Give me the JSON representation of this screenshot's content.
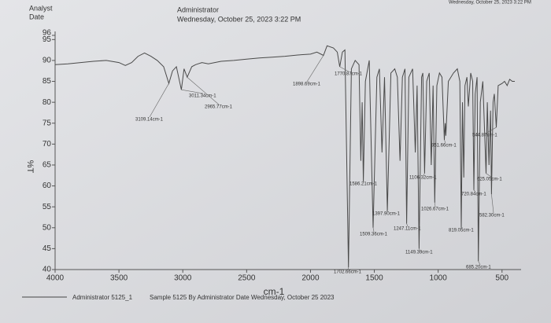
{
  "header": {
    "analyst_label": "Analyst",
    "date_label": "Date",
    "operator": "Administrator",
    "timestamp": "Wednesday, October 25, 2023 3:22 PM",
    "corner_timestamp": "Wednesday, October 25, 2023 3:22 PM"
  },
  "chart_data": {
    "type": "line",
    "x_label": "cm-1",
    "y_label": "%T",
    "xlim": [
      4000,
      400
    ],
    "ylim": [
      40,
      96
    ],
    "xticks": [
      4000,
      3500,
      3000,
      2500,
      2000,
      1500,
      1000,
      500
    ],
    "yticks": [
      40,
      45,
      50,
      55,
      60,
      65,
      70,
      75,
      80,
      85,
      90,
      95,
      96
    ],
    "series": [
      {
        "name": "Administrator 5125_1",
        "color": "#4a4a4a",
        "x": [
          4000,
          3900,
          3800,
          3700,
          3600,
          3500,
          3450,
          3400,
          3350,
          3300,
          3250,
          3200,
          3150,
          3109.14,
          3080,
          3050,
          3011.34,
          2990,
          2965.77,
          2930,
          2900,
          2850,
          2800,
          2700,
          2600,
          2500,
          2400,
          2300,
          2200,
          2100,
          2000,
          1950,
          1898.69,
          1870,
          1820,
          1790,
          1770.87,
          1750,
          1730,
          1702.66,
          1680,
          1650,
          1620,
          1606,
          1595,
          1586.21,
          1570,
          1540,
          1509.36,
          1480,
          1460,
          1440,
          1420,
          1397.9,
          1370,
          1340,
          1320,
          1299,
          1280,
          1260,
          1247.11,
          1230,
          1200,
          1179,
          1165,
          1149.39,
          1130,
          1120,
          1106.32,
          1090,
          1070,
          1054,
          1040,
          1026.67,
          1010,
          990,
          970,
          951.66,
          945,
          940,
          920,
          880,
          850,
          830,
          819.05,
          810,
          799.43,
          790,
          775,
          764,
          745,
          730,
          720.84,
          710,
          695,
          685.2,
          670,
          650,
          625.05,
          615,
          602,
          590,
          582.3,
          570,
          560,
          544.87,
          530,
          500,
          480,
          460,
          440,
          420,
          400
        ],
        "values": [
          89,
          89.2,
          89.5,
          89.8,
          90,
          89.5,
          88.8,
          89.5,
          91,
          91.8,
          91,
          90,
          88.5,
          84.5,
          87.5,
          88.5,
          83,
          88,
          86,
          88.5,
          89,
          89.5,
          89.2,
          89.8,
          90,
          90.3,
          90.6,
          90.8,
          91,
          91.3,
          91.5,
          92,
          91.2,
          93.5,
          93,
          92,
          88.5,
          92,
          92.5,
          40.5,
          88,
          90,
          89,
          66,
          80,
          61,
          85,
          90,
          50,
          86,
          88,
          68,
          86,
          54,
          87,
          88,
          86,
          66,
          86,
          88,
          51,
          86,
          88,
          68,
          84,
          45,
          86,
          87,
          63,
          85,
          87,
          65,
          84,
          56,
          84,
          87,
          86,
          71,
          75,
          72,
          85,
          87,
          88,
          85,
          50,
          80,
          62,
          84,
          86,
          79,
          87,
          85,
          59,
          82,
          86,
          42,
          80,
          85,
          63,
          80,
          65,
          78,
          58,
          80,
          82,
          74,
          84,
          84.5,
          85,
          84,
          85.5,
          85,
          85
        ]
      }
    ],
    "peak_labels": [
      {
        "label": "3109.14cm-1",
        "x": 3109.14,
        "y": 84.5
      },
      {
        "label": "3011.34cm-1",
        "x": 3011.34,
        "y": 83
      },
      {
        "label": "2965.77cm-1",
        "x": 2965.77,
        "y": 86
      },
      {
        "label": "1898.69cm-1",
        "x": 1898.69,
        "y": 91.2
      },
      {
        "label": "1770.87cm-1",
        "x": 1770.87,
        "y": 88.5
      },
      {
        "label": "1702.66cm-1",
        "x": 1702.66,
        "y": 40.5
      },
      {
        "label": "1586.21cm-1",
        "x": 1586.21,
        "y": 61
      },
      {
        "label": "1509.36cm-1",
        "x": 1509.36,
        "y": 50
      },
      {
        "label": "1397.90cm-1",
        "x": 1397.9,
        "y": 54
      },
      {
        "label": "1247.11cm-1",
        "x": 1247.11,
        "y": 51
      },
      {
        "label": "1149.39cm-1",
        "x": 1149.39,
        "y": 45
      },
      {
        "label": "1106.32cm-1",
        "x": 1106.32,
        "y": 63
      },
      {
        "label": "1026.67cm-1",
        "x": 1026.67,
        "y": 56
      },
      {
        "label": "951.66cm-1",
        "x": 951.66,
        "y": 71
      },
      {
        "label": "819.05cm-1",
        "x": 819.05,
        "y": 50
      },
      {
        "label": "720.84cm-1",
        "x": 720.84,
        "y": 59
      },
      {
        "label": "685.20cm-1",
        "x": 685.2,
        "y": 42
      },
      {
        "label": "625.05cm-1",
        "x": 625.05,
        "y": 63
      },
      {
        "label": "582.30cm-1",
        "x": 582.3,
        "y": 58
      },
      {
        "label": "544.87cm-1",
        "x": 544.87,
        "y": 74
      }
    ]
  },
  "footer": {
    "sample": "Sample 5125 By Administrator Date Wednesday, October 25 2023"
  }
}
